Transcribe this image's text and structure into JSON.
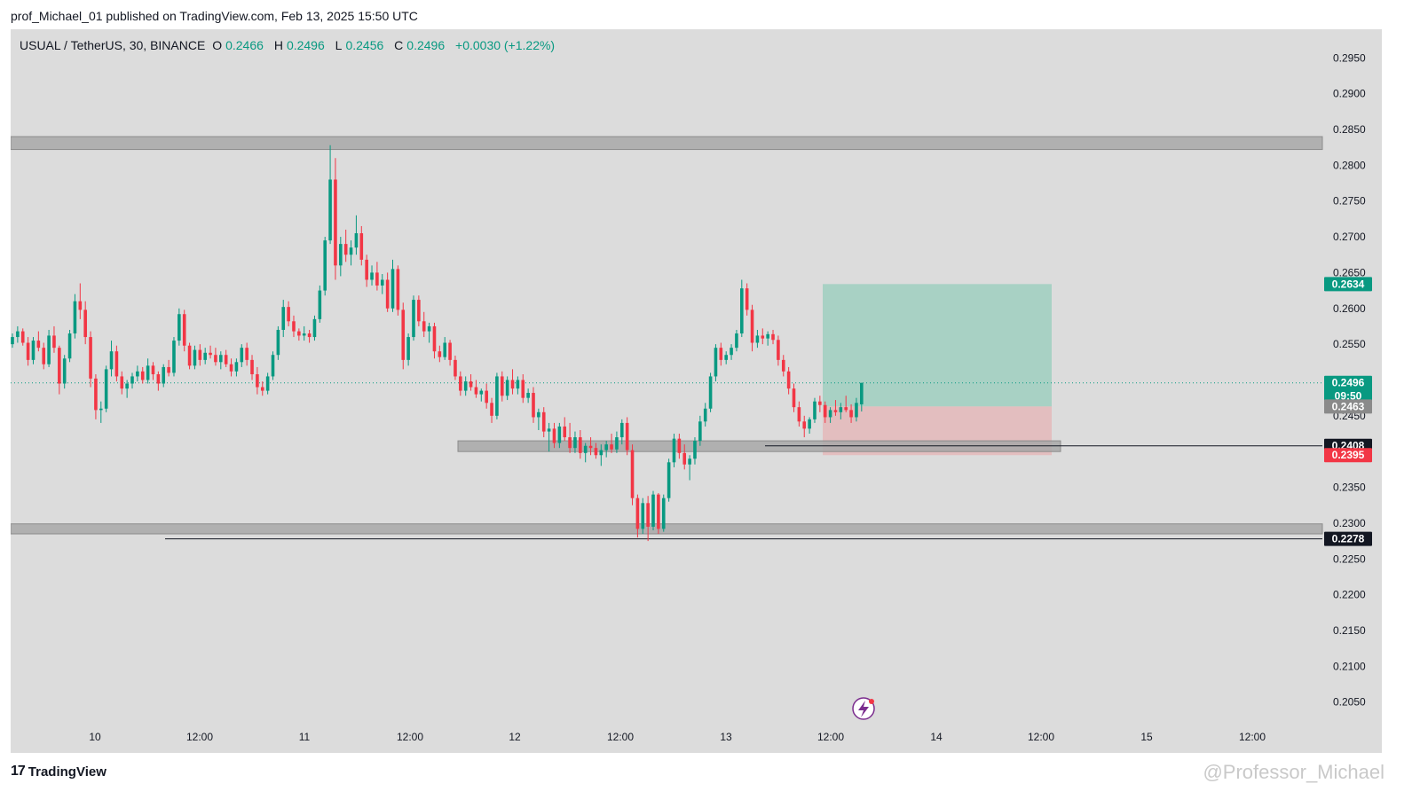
{
  "header": {
    "publish_line": "prof_Michael_01 published on TradingView.com, Feb 13, 2025 15:50 UTC"
  },
  "legend": {
    "symbol": "USUAL / TetherUS, 30, BINANCE",
    "open_label": "O",
    "open_value": "0.2466",
    "high_label": "H",
    "high_value": "0.2496",
    "low_label": "L",
    "low_value": "0.2456",
    "close_label": "C",
    "close_value": "0.2496",
    "change": "+0.0030 (+1.22%)"
  },
  "footer": {
    "brand": "TradingView",
    "brand_mark": "17",
    "watermark": "@Professor_Michael"
  },
  "colors": {
    "up": "#089981",
    "down": "#f23645",
    "zone": "#a8a8a8",
    "target_fill": "#9fcfc0",
    "stop_fill": "#e4b8ba",
    "panel": "#dcdcdc"
  },
  "icons": {
    "alert": "lightning-bolt-icon"
  },
  "chart_data": {
    "type": "candlestick",
    "ylim": [
      0.201,
      0.2985
    ],
    "y_ticks": [
      "0.2950",
      "0.2900",
      "0.2850",
      "0.2800",
      "0.2750",
      "0.2700",
      "0.2650",
      "0.2600",
      "0.2550",
      "0.2500",
      "0.2450",
      "0.2400",
      "0.2350",
      "0.2300",
      "0.2250",
      "0.2200",
      "0.2150",
      "0.2100",
      "0.2050"
    ],
    "x_labels": [
      "10",
      "12:00",
      "11",
      "12:00",
      "12",
      "12:00",
      "13",
      "12:00",
      "14",
      "12:00",
      "15",
      "12:00"
    ],
    "price_badges": [
      {
        "label": "0.2634",
        "value": 0.2634,
        "color": "#089981"
      },
      {
        "label": "0.2496",
        "sub": "09:50",
        "value": 0.2496,
        "color": "#089981"
      },
      {
        "label": "0.2463",
        "value": 0.2463,
        "color": "#8a8a8a"
      },
      {
        "label": "0.2408",
        "value": 0.2408,
        "color": "#131722"
      },
      {
        "label": "0.2395",
        "value": 0.2395,
        "color": "#f23645"
      },
      {
        "label": "0.2278",
        "value": 0.2278,
        "color": "#131722"
      }
    ],
    "zones": [
      {
        "name": "resistance",
        "low": 0.2822,
        "high": 0.284
      },
      {
        "name": "mid-support",
        "low": 0.24,
        "high": 0.2415
      },
      {
        "name": "support",
        "low": 0.2285,
        "high": 0.2299
      }
    ],
    "position": {
      "entry": 0.2463,
      "target": 0.2634,
      "stop": 0.2395
    },
    "horizontal_lines": [
      0.2408,
      0.2278
    ],
    "candles": [
      [
        0.255,
        0.2565,
        0.2545,
        0.256
      ],
      [
        0.256,
        0.2575,
        0.2552,
        0.2568
      ],
      [
        0.2568,
        0.2572,
        0.2548,
        0.2552
      ],
      [
        0.2552,
        0.256,
        0.252,
        0.2528
      ],
      [
        0.2528,
        0.256,
        0.2522,
        0.2555
      ],
      [
        0.2555,
        0.2568,
        0.254,
        0.2545
      ],
      [
        0.2545,
        0.2552,
        0.2515,
        0.2522
      ],
      [
        0.2522,
        0.257,
        0.2518,
        0.2562
      ],
      [
        0.2562,
        0.2575,
        0.2538,
        0.2545
      ],
      [
        0.2545,
        0.2548,
        0.248,
        0.2495
      ],
      [
        0.2495,
        0.2535,
        0.2488,
        0.253
      ],
      [
        0.253,
        0.257,
        0.2525,
        0.2565
      ],
      [
        0.2565,
        0.262,
        0.2558,
        0.261
      ],
      [
        0.261,
        0.2635,
        0.2585,
        0.2598
      ],
      [
        0.2598,
        0.261,
        0.255,
        0.256
      ],
      [
        0.256,
        0.2568,
        0.249,
        0.2502
      ],
      [
        0.2502,
        0.2508,
        0.2445,
        0.2458
      ],
      [
        0.2458,
        0.247,
        0.244,
        0.246
      ],
      [
        0.246,
        0.252,
        0.2455,
        0.2515
      ],
      [
        0.2515,
        0.2555,
        0.2505,
        0.254
      ],
      [
        0.254,
        0.2548,
        0.2498,
        0.2505
      ],
      [
        0.2505,
        0.2512,
        0.248,
        0.2488
      ],
      [
        0.2488,
        0.25,
        0.2475,
        0.2495
      ],
      [
        0.2495,
        0.251,
        0.2488,
        0.2505
      ],
      [
        0.2505,
        0.252,
        0.2498,
        0.2512
      ],
      [
        0.2512,
        0.2518,
        0.2495,
        0.25
      ],
      [
        0.25,
        0.253,
        0.2495,
        0.252
      ],
      [
        0.252,
        0.2525,
        0.25,
        0.2508
      ],
      [
        0.2508,
        0.2512,
        0.2485,
        0.2495
      ],
      [
        0.2495,
        0.2522,
        0.249,
        0.2518
      ],
      [
        0.2518,
        0.2528,
        0.2505,
        0.251
      ],
      [
        0.251,
        0.256,
        0.2505,
        0.2555
      ],
      [
        0.2555,
        0.26,
        0.2548,
        0.2592
      ],
      [
        0.2592,
        0.2598,
        0.254,
        0.2548
      ],
      [
        0.2548,
        0.2552,
        0.2515,
        0.252
      ],
      [
        0.252,
        0.2548,
        0.2515,
        0.2542
      ],
      [
        0.2542,
        0.255,
        0.252,
        0.2528
      ],
      [
        0.2528,
        0.2545,
        0.2522,
        0.2538
      ],
      [
        0.2538,
        0.2548,
        0.253,
        0.2535
      ],
      [
        0.2535,
        0.2545,
        0.252,
        0.2525
      ],
      [
        0.2525,
        0.254,
        0.2515,
        0.2535
      ],
      [
        0.2535,
        0.2542,
        0.2518,
        0.2522
      ],
      [
        0.2522,
        0.253,
        0.2505,
        0.2512
      ],
      [
        0.2512,
        0.253,
        0.2505,
        0.2525
      ],
      [
        0.2525,
        0.255,
        0.2518,
        0.2545
      ],
      [
        0.2545,
        0.2552,
        0.252,
        0.2528
      ],
      [
        0.2528,
        0.2535,
        0.25,
        0.2508
      ],
      [
        0.2508,
        0.2518,
        0.248,
        0.249
      ],
      [
        0.249,
        0.2498,
        0.2478,
        0.2485
      ],
      [
        0.2485,
        0.251,
        0.248,
        0.2505
      ],
      [
        0.2505,
        0.254,
        0.25,
        0.2535
      ],
      [
        0.2535,
        0.2575,
        0.2528,
        0.257
      ],
      [
        0.257,
        0.2612,
        0.256,
        0.2602
      ],
      [
        0.2602,
        0.261,
        0.2575,
        0.2582
      ],
      [
        0.2582,
        0.259,
        0.256,
        0.2568
      ],
      [
        0.2568,
        0.2572,
        0.2555,
        0.2562
      ],
      [
        0.2562,
        0.2575,
        0.2555,
        0.2565
      ],
      [
        0.2565,
        0.257,
        0.2552,
        0.256
      ],
      [
        0.256,
        0.259,
        0.2555,
        0.2585
      ],
      [
        0.2585,
        0.2632,
        0.258,
        0.2625
      ],
      [
        0.2625,
        0.27,
        0.2618,
        0.2695
      ],
      [
        0.2695,
        0.2828,
        0.269,
        0.278
      ],
      [
        0.278,
        0.281,
        0.264,
        0.266
      ],
      [
        0.266,
        0.27,
        0.2645,
        0.269
      ],
      [
        0.269,
        0.271,
        0.2665,
        0.2675
      ],
      [
        0.2675,
        0.2695,
        0.266,
        0.2685
      ],
      [
        0.2685,
        0.273,
        0.2675,
        0.2705
      ],
      [
        0.2705,
        0.2715,
        0.266,
        0.2668
      ],
      [
        0.2668,
        0.2675,
        0.263,
        0.264
      ],
      [
        0.264,
        0.266,
        0.2632,
        0.265
      ],
      [
        0.265,
        0.2665,
        0.2625,
        0.2632
      ],
      [
        0.2632,
        0.2648,
        0.262,
        0.264
      ],
      [
        0.264,
        0.265,
        0.2595,
        0.26
      ],
      [
        0.26,
        0.2668,
        0.2595,
        0.2655
      ],
      [
        0.2655,
        0.266,
        0.259,
        0.2598
      ],
      [
        0.2598,
        0.2608,
        0.2515,
        0.2528
      ],
      [
        0.2528,
        0.2565,
        0.252,
        0.256
      ],
      [
        0.256,
        0.2618,
        0.2555,
        0.2612
      ],
      [
        0.2612,
        0.2618,
        0.2575,
        0.2582
      ],
      [
        0.2582,
        0.2595,
        0.256,
        0.2568
      ],
      [
        0.2568,
        0.258,
        0.2552,
        0.2575
      ],
      [
        0.2575,
        0.258,
        0.253,
        0.254
      ],
      [
        0.254,
        0.2548,
        0.2525,
        0.2532
      ],
      [
        0.2532,
        0.256,
        0.2528,
        0.2552
      ],
      [
        0.2552,
        0.2556,
        0.252,
        0.2528
      ],
      [
        0.2528,
        0.2534,
        0.25,
        0.2505
      ],
      [
        0.2505,
        0.2512,
        0.2478,
        0.2485
      ],
      [
        0.2485,
        0.2505,
        0.2478,
        0.2498
      ],
      [
        0.2498,
        0.2508,
        0.2485,
        0.249
      ],
      [
        0.249,
        0.25,
        0.2475,
        0.248
      ],
      [
        0.248,
        0.2488,
        0.247,
        0.2485
      ],
      [
        0.2485,
        0.2495,
        0.246,
        0.2468
      ],
      [
        0.2468,
        0.2475,
        0.244,
        0.245
      ],
      [
        0.245,
        0.251,
        0.2445,
        0.2505
      ],
      [
        0.2505,
        0.2512,
        0.247,
        0.2478
      ],
      [
        0.2478,
        0.2505,
        0.2472,
        0.25
      ],
      [
        0.25,
        0.2515,
        0.248,
        0.2488
      ],
      [
        0.2488,
        0.2505,
        0.248,
        0.25
      ],
      [
        0.25,
        0.2508,
        0.2468,
        0.2475
      ],
      [
        0.2475,
        0.2488,
        0.2468,
        0.2482
      ],
      [
        0.2482,
        0.249,
        0.244,
        0.2448
      ],
      [
        0.2448,
        0.246,
        0.243,
        0.2455
      ],
      [
        0.2455,
        0.2462,
        0.242,
        0.2428
      ],
      [
        0.2428,
        0.244,
        0.24,
        0.2432
      ],
      [
        0.2432,
        0.244,
        0.2405,
        0.2412
      ],
      [
        0.2412,
        0.244,
        0.2405,
        0.2435
      ],
      [
        0.2435,
        0.2448,
        0.2415,
        0.242
      ],
      [
        0.242,
        0.244,
        0.2398,
        0.2405
      ],
      [
        0.2405,
        0.2428,
        0.2398,
        0.242
      ],
      [
        0.242,
        0.243,
        0.239,
        0.2398
      ],
      [
        0.2398,
        0.2412,
        0.2385,
        0.2408
      ],
      [
        0.2408,
        0.242,
        0.2395,
        0.2405
      ],
      [
        0.2405,
        0.2412,
        0.239,
        0.2395
      ],
      [
        0.2395,
        0.241,
        0.238,
        0.2402
      ],
      [
        0.2402,
        0.2415,
        0.2392,
        0.241
      ],
      [
        0.241,
        0.2425,
        0.2398,
        0.2403
      ],
      [
        0.2403,
        0.2428,
        0.2398,
        0.242
      ],
      [
        0.242,
        0.2445,
        0.241,
        0.244
      ],
      [
        0.244,
        0.2448,
        0.2395,
        0.2402
      ],
      [
        0.2402,
        0.241,
        0.2325,
        0.2335
      ],
      [
        0.2335,
        0.234,
        0.228,
        0.2292
      ],
      [
        0.2292,
        0.2335,
        0.2285,
        0.2328
      ],
      [
        0.2328,
        0.2338,
        0.2275,
        0.2295
      ],
      [
        0.2295,
        0.2345,
        0.229,
        0.234
      ],
      [
        0.234,
        0.2342,
        0.2285,
        0.2292
      ],
      [
        0.2292,
        0.234,
        0.2288,
        0.2335
      ],
      [
        0.2335,
        0.239,
        0.233,
        0.2385
      ],
      [
        0.2385,
        0.2425,
        0.2378,
        0.2418
      ],
      [
        0.2418,
        0.2425,
        0.239,
        0.2398
      ],
      [
        0.2398,
        0.241,
        0.2375,
        0.2382
      ],
      [
        0.2382,
        0.2395,
        0.236,
        0.239
      ],
      [
        0.239,
        0.242,
        0.2382,
        0.2415
      ],
      [
        0.2415,
        0.245,
        0.2408,
        0.2442
      ],
      [
        0.2442,
        0.2468,
        0.2435,
        0.246
      ],
      [
        0.246,
        0.251,
        0.2455,
        0.2505
      ],
      [
        0.2505,
        0.255,
        0.2498,
        0.2545
      ],
      [
        0.2545,
        0.2552,
        0.252,
        0.2528
      ],
      [
        0.2528,
        0.254,
        0.2522,
        0.2535
      ],
      [
        0.2535,
        0.255,
        0.2528,
        0.2545
      ],
      [
        0.2545,
        0.257,
        0.254,
        0.2565
      ],
      [
        0.2565,
        0.264,
        0.256,
        0.2628
      ],
      [
        0.2628,
        0.2635,
        0.259,
        0.2598
      ],
      [
        0.2598,
        0.2605,
        0.254,
        0.2552
      ],
      [
        0.2552,
        0.257,
        0.2545,
        0.2562
      ],
      [
        0.2562,
        0.2572,
        0.255,
        0.2558
      ],
      [
        0.2558,
        0.2568,
        0.2548,
        0.2564
      ],
      [
        0.2564,
        0.257,
        0.255,
        0.2556
      ],
      [
        0.2556,
        0.2562,
        0.252,
        0.2528
      ],
      [
        0.2528,
        0.2535,
        0.2505,
        0.2512
      ],
      [
        0.2512,
        0.2518,
        0.248,
        0.2488
      ],
      [
        0.2488,
        0.2495,
        0.2455,
        0.2462
      ],
      [
        0.2462,
        0.247,
        0.2435,
        0.2442
      ],
      [
        0.2442,
        0.245,
        0.242,
        0.2432
      ],
      [
        0.2432,
        0.2448,
        0.2425,
        0.2445
      ],
      [
        0.2445,
        0.2475,
        0.244,
        0.247
      ],
      [
        0.247,
        0.2478,
        0.2455,
        0.2465
      ],
      [
        0.2465,
        0.247,
        0.244,
        0.2448
      ],
      [
        0.2448,
        0.2462,
        0.244,
        0.2458
      ],
      [
        0.2458,
        0.2472,
        0.245,
        0.2455
      ],
      [
        0.2455,
        0.2468,
        0.2445,
        0.2462
      ],
      [
        0.2462,
        0.2478,
        0.2455,
        0.2458
      ],
      [
        0.2458,
        0.2466,
        0.244,
        0.2448
      ],
      [
        0.2448,
        0.2475,
        0.2442,
        0.2468
      ],
      [
        0.2466,
        0.2496,
        0.2456,
        0.2496
      ]
    ]
  }
}
